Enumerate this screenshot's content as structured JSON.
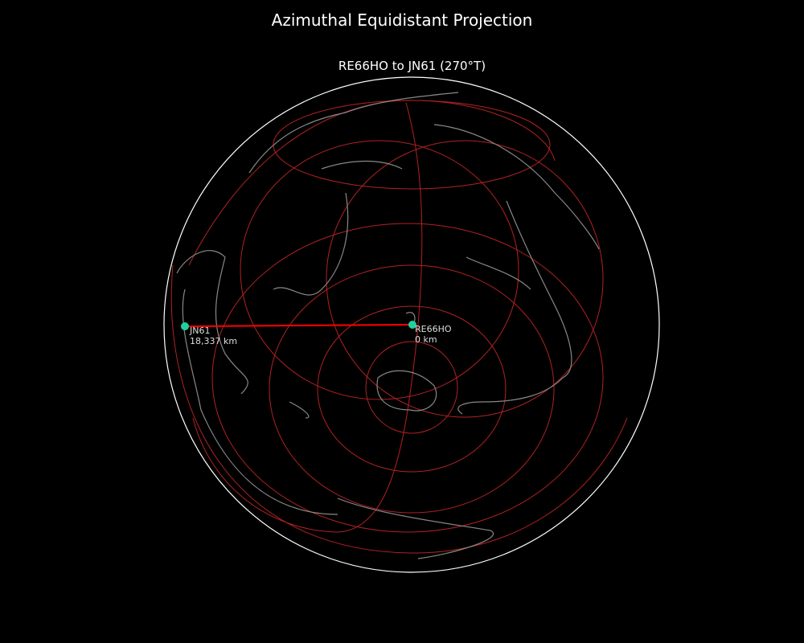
{
  "title": "Azimuthal Equidistant Projection",
  "subtitle": "RE66HO to JN61 (270°T)",
  "colors": {
    "background": "#000000",
    "grid": "#b22222",
    "coast": "#888888",
    "path": "#ff0000",
    "marker": "#1fd1a0",
    "border": "#ffffff"
  },
  "origin": {
    "name": "RE66HO",
    "distance": "0 km"
  },
  "destination": {
    "name": "JN61",
    "distance": "18,337 km"
  }
}
